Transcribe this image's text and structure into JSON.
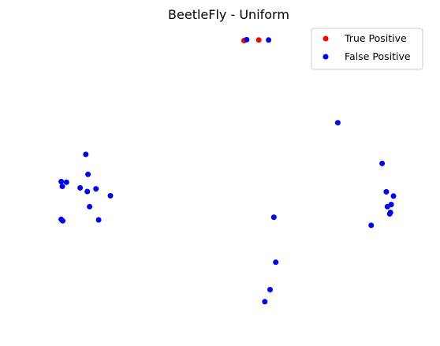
{
  "chart_data": {
    "type": "scatter",
    "title": "BeetleFly - Uniform",
    "xlabel": "",
    "ylabel": "",
    "axes_visible": false,
    "grid": false,
    "legend_position": "top-right",
    "xlim": [
      0,
      100
    ],
    "ylim": [
      0,
      100
    ],
    "series": [
      {
        "name": "True Positive",
        "color": "#ff0000",
        "marker": "circle",
        "points": [
          {
            "x": 53.0,
            "y": 94.9
          },
          {
            "x": 56.9,
            "y": 95.1
          }
        ]
      },
      {
        "name": "False Positive",
        "color": "#0000ff",
        "marker": "circle",
        "points": [
          {
            "x": 53.7,
            "y": 95.2
          },
          {
            "x": 59.5,
            "y": 95.1
          },
          {
            "x": 77.8,
            "y": 67.7
          },
          {
            "x": 11.2,
            "y": 57.2
          },
          {
            "x": 11.8,
            "y": 50.6
          },
          {
            "x": 4.7,
            "y": 48.2
          },
          {
            "x": 6.1,
            "y": 48.0
          },
          {
            "x": 5.0,
            "y": 46.6
          },
          {
            "x": 9.7,
            "y": 46.1
          },
          {
            "x": 13.9,
            "y": 45.8
          },
          {
            "x": 11.6,
            "y": 44.9
          },
          {
            "x": 17.7,
            "y": 43.5
          },
          {
            "x": 12.2,
            "y": 39.9
          },
          {
            "x": 4.7,
            "y": 35.7
          },
          {
            "x": 5.1,
            "y": 35.2
          },
          {
            "x": 14.6,
            "y": 35.5
          },
          {
            "x": 89.5,
            "y": 54.2
          },
          {
            "x": 90.6,
            "y": 44.8
          },
          {
            "x": 92.5,
            "y": 43.4
          },
          {
            "x": 91.9,
            "y": 40.6
          },
          {
            "x": 90.9,
            "y": 39.9
          },
          {
            "x": 91.7,
            "y": 38.0
          },
          {
            "x": 91.5,
            "y": 37.5
          },
          {
            "x": 86.6,
            "y": 33.7
          },
          {
            "x": 60.9,
            "y": 36.4
          },
          {
            "x": 61.4,
            "y": 21.5
          },
          {
            "x": 59.9,
            "y": 12.4
          },
          {
            "x": 58.5,
            "y": 8.4
          }
        ]
      }
    ]
  }
}
